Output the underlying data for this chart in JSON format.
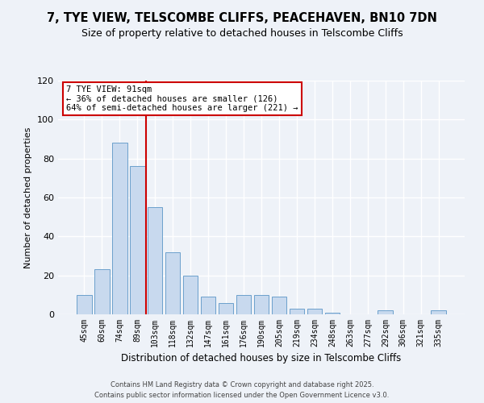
{
  "title_line1": "7, TYE VIEW, TELSCOMBE CLIFFS, PEACEHAVEN, BN10 7DN",
  "title_line2": "Size of property relative to detached houses in Telscombe Cliffs",
  "xlabel": "Distribution of detached houses by size in Telscombe Cliffs",
  "ylabel": "Number of detached properties",
  "bar_color": "#c8d9ee",
  "bar_edge_color": "#6ca0cc",
  "bar_categories": [
    "45sqm",
    "60sqm",
    "74sqm",
    "89sqm",
    "103sqm",
    "118sqm",
    "132sqm",
    "147sqm",
    "161sqm",
    "176sqm",
    "190sqm",
    "205sqm",
    "219sqm",
    "234sqm",
    "248sqm",
    "263sqm",
    "277sqm",
    "292sqm",
    "306sqm",
    "321sqm",
    "335sqm"
  ],
  "bar_values": [
    10,
    23,
    88,
    76,
    55,
    32,
    20,
    9,
    6,
    10,
    10,
    9,
    3,
    3,
    1,
    0,
    0,
    2,
    0,
    0,
    2
  ],
  "vline_index": 3,
  "vline_color": "#cc0000",
  "ylim": [
    0,
    120
  ],
  "yticks": [
    0,
    20,
    40,
    60,
    80,
    100,
    120
  ],
  "annotation_title": "7 TYE VIEW: 91sqm",
  "annotation_line1": "← 36% of detached houses are smaller (126)",
  "annotation_line2": "64% of semi-detached houses are larger (221) →",
  "annotation_box_color": "#ffffff",
  "annotation_box_edge": "#cc0000",
  "footer_line1": "Contains HM Land Registry data © Crown copyright and database right 2025.",
  "footer_line2": "Contains public sector information licensed under the Open Government Licence v3.0.",
  "background_color": "#eef2f8",
  "grid_color": "#ffffff",
  "title_fontsize": 10.5,
  "subtitle_fontsize": 9
}
